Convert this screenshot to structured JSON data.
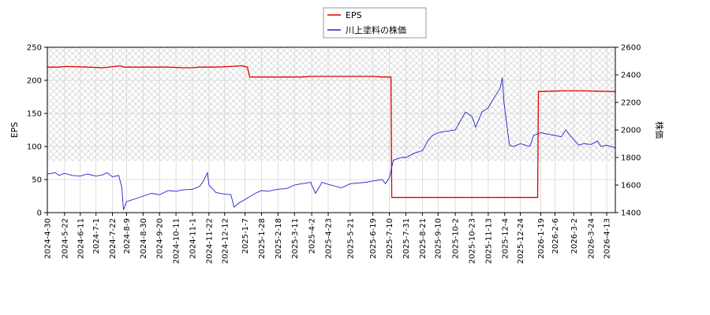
{
  "chart_data": {
    "type": "line",
    "title": "",
    "xlabel": "",
    "legend": {
      "position": "top-center",
      "entries": [
        {
          "label": "EPS",
          "color": "#dd0000"
        },
        {
          "label": "川上塗料の株価",
          "color": "#2222cc"
        }
      ]
    },
    "y_left": {
      "label": "EPS",
      "range": [
        0,
        250
      ],
      "ticks": [
        0,
        50,
        100,
        150,
        200,
        250
      ]
    },
    "y_right": {
      "label": "株価",
      "range": [
        1400,
        2600
      ],
      "ticks": [
        1400,
        1600,
        1800,
        2000,
        2200,
        2400,
        2600
      ]
    },
    "x_range": [
      "2024-04-30",
      "2026-04-24"
    ],
    "x_ticks": [
      "2024-4-30",
      "2024-5-22",
      "2024-6-11",
      "2024-7-1",
      "2024-7-22",
      "2024-8-9",
      "2024-8-30",
      "2024-9-20",
      "2024-10-11",
      "2024-11-1",
      "2024-11-22",
      "2024-12-12",
      "2025-1-7",
      "2025-1-28",
      "2025-2-18",
      "2025-3-11",
      "2025-4-2",
      "2025-4-23",
      "2025-5-21",
      "2025-6-19",
      "2025-7-10",
      "2025-7-31",
      "2025-8-21",
      "2025-9-10",
      "2025-10-2",
      "2025-10-23",
      "2025-11-13",
      "2025-12-4",
      "2025-12-24",
      "2026-1-19",
      "2026-2-6",
      "2026-3-2",
      "2026-3-24",
      "2026-4-13"
    ],
    "grid": true,
    "hatched_regions": [
      [
        "2024-04-30",
        "2026-04-24"
      ]
    ],
    "series": [
      {
        "name": "EPS",
        "axis": "left",
        "color": "#dd0000",
        "points": [
          [
            "2024-04-30",
            220
          ],
          [
            "2024-05-15",
            220
          ],
          [
            "2024-05-25",
            221
          ],
          [
            "2024-06-20",
            220
          ],
          [
            "2024-07-10",
            219
          ],
          [
            "2024-07-25",
            221
          ],
          [
            "2024-08-01",
            222
          ],
          [
            "2024-08-05",
            220
          ],
          [
            "2024-09-01",
            220
          ],
          [
            "2024-10-01",
            220
          ],
          [
            "2024-10-20",
            219
          ],
          [
            "2024-11-01",
            219
          ],
          [
            "2024-11-10",
            220
          ],
          [
            "2024-12-01",
            220
          ],
          [
            "2024-12-20",
            221
          ],
          [
            "2025-01-03",
            222
          ],
          [
            "2025-01-10",
            220
          ],
          [
            "2025-01-13",
            205
          ],
          [
            "2025-02-01",
            205
          ],
          [
            "2025-03-01",
            205
          ],
          [
            "2025-03-20",
            205
          ],
          [
            "2025-04-01",
            206
          ],
          [
            "2025-05-01",
            206
          ],
          [
            "2025-06-01",
            206
          ],
          [
            "2025-06-20",
            206
          ],
          [
            "2025-07-01",
            205
          ],
          [
            "2025-07-12",
            205
          ],
          [
            "2025-07-13",
            23
          ],
          [
            "2025-09-01",
            23
          ],
          [
            "2025-11-01",
            23
          ],
          [
            "2026-01-15",
            23
          ],
          [
            "2026-01-16",
            183
          ],
          [
            "2026-02-15",
            184
          ],
          [
            "2026-03-15",
            184
          ],
          [
            "2026-04-24",
            183
          ]
        ]
      },
      {
        "name": "川上塗料の株価",
        "axis": "right",
        "color": "#2222cc",
        "points": [
          [
            "2024-04-30",
            1680
          ],
          [
            "2024-05-10",
            1690
          ],
          [
            "2024-05-15",
            1670
          ],
          [
            "2024-05-22",
            1685
          ],
          [
            "2024-06-01",
            1670
          ],
          [
            "2024-06-11",
            1665
          ],
          [
            "2024-06-20",
            1680
          ],
          [
            "2024-07-01",
            1665
          ],
          [
            "2024-07-10",
            1675
          ],
          [
            "2024-07-15",
            1690
          ],
          [
            "2024-07-22",
            1660
          ],
          [
            "2024-07-30",
            1670
          ],
          [
            "2024-08-03",
            1580
          ],
          [
            "2024-08-05",
            1420
          ],
          [
            "2024-08-07",
            1450
          ],
          [
            "2024-08-09",
            1480
          ],
          [
            "2024-08-20",
            1500
          ],
          [
            "2024-08-30",
            1520
          ],
          [
            "2024-09-10",
            1540
          ],
          [
            "2024-09-20",
            1530
          ],
          [
            "2024-10-01",
            1560
          ],
          [
            "2024-10-11",
            1555
          ],
          [
            "2024-10-20",
            1565
          ],
          [
            "2024-11-01",
            1570
          ],
          [
            "2024-11-10",
            1590
          ],
          [
            "2024-11-15",
            1630
          ],
          [
            "2024-11-20",
            1690
          ],
          [
            "2024-11-22",
            1600
          ],
          [
            "2024-12-01",
            1545
          ],
          [
            "2024-12-12",
            1535
          ],
          [
            "2024-12-20",
            1530
          ],
          [
            "2024-12-24",
            1440
          ],
          [
            "2024-12-30",
            1470
          ],
          [
            "2025-01-07",
            1495
          ],
          [
            "2025-01-20",
            1540
          ],
          [
            "2025-01-28",
            1560
          ],
          [
            "2025-02-05",
            1555
          ],
          [
            "2025-02-18",
            1570
          ],
          [
            "2025-03-01",
            1575
          ],
          [
            "2025-03-11",
            1600
          ],
          [
            "2025-03-20",
            1610
          ],
          [
            "2025-04-01",
            1620
          ],
          [
            "2025-04-02",
            1600
          ],
          [
            "2025-04-07",
            1540
          ],
          [
            "2025-04-15",
            1620
          ],
          [
            "2025-04-23",
            1605
          ],
          [
            "2025-05-10",
            1580
          ],
          [
            "2025-05-21",
            1610
          ],
          [
            "2025-06-10",
            1620
          ],
          [
            "2025-06-19",
            1630
          ],
          [
            "2025-07-01",
            1640
          ],
          [
            "2025-07-05",
            1610
          ],
          [
            "2025-07-10",
            1655
          ],
          [
            "2025-07-15",
            1780
          ],
          [
            "2025-07-25",
            1800
          ],
          [
            "2025-07-31",
            1800
          ],
          [
            "2025-08-10",
            1830
          ],
          [
            "2025-08-21",
            1850
          ],
          [
            "2025-08-28",
            1920
          ],
          [
            "2025-09-03",
            1960
          ],
          [
            "2025-09-10",
            1980
          ],
          [
            "2025-09-20",
            1990
          ],
          [
            "2025-10-02",
            2000
          ],
          [
            "2025-10-10",
            2080
          ],
          [
            "2025-10-15",
            2130
          ],
          [
            "2025-10-23",
            2100
          ],
          [
            "2025-10-28",
            2020
          ],
          [
            "2025-11-05",
            2130
          ],
          [
            "2025-11-13",
            2160
          ],
          [
            "2025-11-20",
            2230
          ],
          [
            "2025-11-28",
            2300
          ],
          [
            "2025-12-01",
            2380
          ],
          [
            "2025-12-03",
            2200
          ],
          [
            "2025-12-06",
            2070
          ],
          [
            "2025-12-10",
            1890
          ],
          [
            "2025-12-15",
            1880
          ],
          [
            "2025-12-24",
            1900
          ],
          [
            "2026-01-05",
            1880
          ],
          [
            "2026-01-10",
            1960
          ],
          [
            "2026-01-19",
            1980
          ],
          [
            "2026-01-28",
            1970
          ],
          [
            "2026-02-06",
            1960
          ],
          [
            "2026-02-14",
            1950
          ],
          [
            "2026-02-20",
            2000
          ],
          [
            "2026-02-25",
            1960
          ],
          [
            "2026-03-02",
            1930
          ],
          [
            "2026-03-08",
            1890
          ],
          [
            "2026-03-15",
            1900
          ],
          [
            "2026-03-24",
            1895
          ],
          [
            "2026-04-01",
            1920
          ],
          [
            "2026-04-06",
            1880
          ],
          [
            "2026-04-13",
            1890
          ],
          [
            "2026-04-24",
            1870
          ]
        ]
      }
    ]
  }
}
